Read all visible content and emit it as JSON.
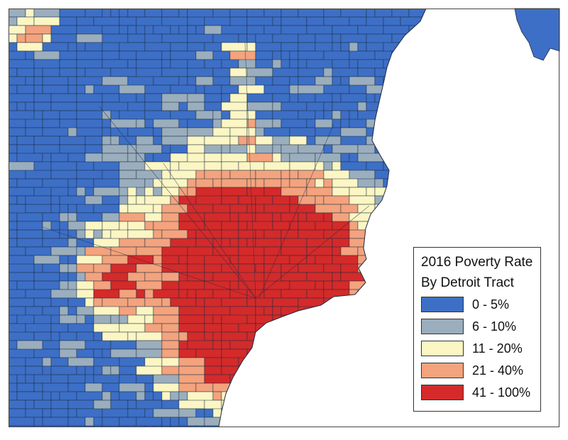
{
  "legend": {
    "title_line1": "2016 Poverty Rate",
    "title_line2": "By Detroit Tract",
    "classes": [
      {
        "label": "0 - 5%",
        "color": "#3d6fc6"
      },
      {
        "label": "6 - 10%",
        "color": "#9aaebd"
      },
      {
        "label": "11 - 20%",
        "color": "#fbf6c3"
      },
      {
        "label": "21 - 40%",
        "color": "#f3a37d"
      },
      {
        "label": "41 - 100%",
        "color": "#d42a2a"
      }
    ]
  },
  "colors": {
    "water": "#ffffff",
    "tract_border": "#1b2a40",
    "frame": "#444444"
  }
}
